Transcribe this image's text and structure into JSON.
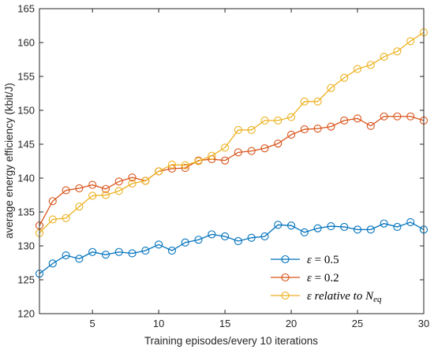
{
  "chart_data": {
    "type": "line",
    "title": "",
    "xlabel": "Training episodes/every 10 iterations",
    "ylabel": "average energy efficiency (kbit/J)",
    "xlim": [
      1,
      30
    ],
    "ylim": [
      120,
      165
    ],
    "xticks": [
      5,
      10,
      15,
      20,
      25,
      30
    ],
    "yticks": [
      120,
      125,
      130,
      135,
      140,
      145,
      150,
      155,
      160,
      165
    ],
    "grid": false,
    "legend_position": "bottom-right",
    "marker": "circle",
    "x": [
      1,
      2,
      3,
      4,
      5,
      6,
      7,
      8,
      9,
      10,
      11,
      12,
      13,
      14,
      15,
      16,
      17,
      18,
      19,
      20,
      21,
      22,
      23,
      24,
      25,
      26,
      27,
      28,
      29,
      30
    ],
    "series": [
      {
        "name": "ε = 0.5",
        "legend_prefix": "ε",
        "legend_suffix": " = 0.5",
        "color": "#0072BD",
        "values": [
          125.9,
          127.4,
          128.6,
          128.1,
          129.1,
          128.7,
          129.1,
          128.9,
          129.3,
          130.2,
          129.3,
          130.5,
          130.9,
          131.7,
          131.4,
          130.7,
          131.2,
          131.4,
          133.1,
          133.0,
          132.0,
          132.6,
          132.9,
          132.8,
          132.4,
          132.4,
          133.3,
          132.8,
          133.5,
          132.4
        ]
      },
      {
        "name": "ε = 0.2",
        "legend_prefix": "ε",
        "legend_suffix": " = 0.2",
        "color": "#D95319",
        "values": [
          133.0,
          136.6,
          138.2,
          138.5,
          139.0,
          138.4,
          139.5,
          140.1,
          139.6,
          141.0,
          141.4,
          141.5,
          142.6,
          142.8,
          142.6,
          143.8,
          144.0,
          144.4,
          145.1,
          146.4,
          147.2,
          147.3,
          147.6,
          148.5,
          148.8,
          147.7,
          149.1,
          149.1,
          149.1,
          148.5
        ]
      },
      {
        "name": "ε relative to Neq",
        "legend_prefix": "ε",
        "legend_suffix": " relative to N",
        "legend_subscript": "eq",
        "color": "#EDB120",
        "values": [
          131.9,
          133.9,
          134.1,
          135.8,
          137.4,
          137.5,
          138.1,
          139.2,
          139.6,
          141.0,
          142.0,
          141.9,
          142.5,
          143.3,
          144.5,
          147.1,
          147.1,
          148.5,
          148.5,
          149.0,
          151.3,
          151.3,
          153.3,
          154.8,
          156.1,
          156.7,
          157.9,
          158.7,
          160.2,
          161.5
        ]
      }
    ]
  }
}
